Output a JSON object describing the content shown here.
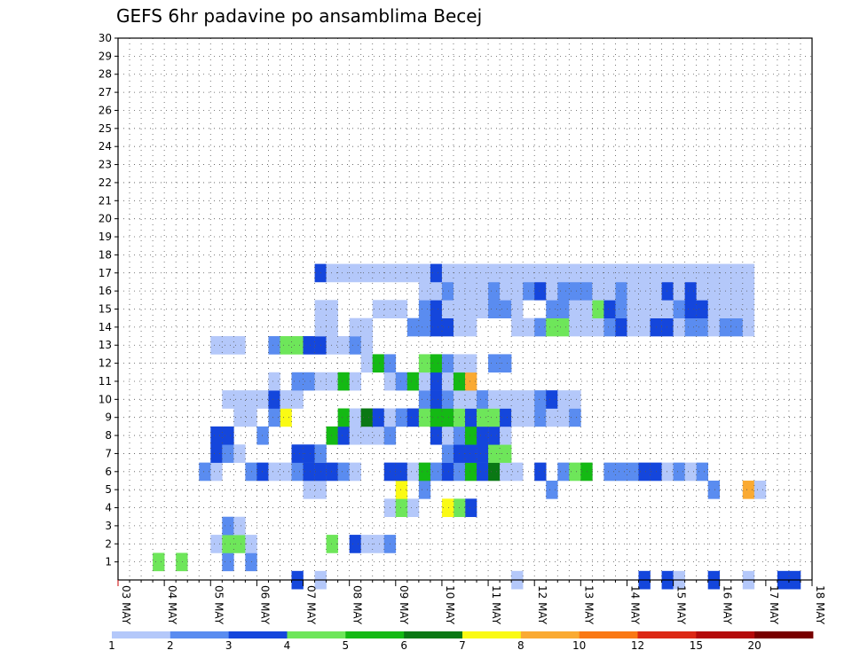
{
  "chart_data": {
    "type": "heatmap",
    "title": "GEFS 6hr padavine po ansamblima Becej",
    "xlabel": "",
    "ylabel": "",
    "x_tick_labels": [
      "03 MAY",
      "04 MAY",
      "05 MAY",
      "06 MAY",
      "07 MAY",
      "08 MAY",
      "09 MAY",
      "10 MAY",
      "11 MAY",
      "12 MAY",
      "13 MAY",
      "14 MAY",
      "15 MAY",
      "16 MAY",
      "17 MAY",
      "18 MAY"
    ],
    "y_tick_labels": [
      "1",
      "2",
      "3",
      "4",
      "5",
      "6",
      "7",
      "8",
      "9",
      "10",
      "11",
      "12",
      "13",
      "14",
      "15",
      "16",
      "17",
      "18",
      "19",
      "20",
      "21",
      "22",
      "23",
      "24",
      "25",
      "26",
      "27",
      "28",
      "29",
      "30"
    ],
    "x_range_steps": [
      0,
      60
    ],
    "y_range_members": [
      0,
      30
    ],
    "time_step_hours": 6,
    "grid": true,
    "colorbar": {
      "placement": "bottom",
      "bounds": [
        "1",
        "2",
        "3",
        "4",
        "5",
        "6",
        "7",
        "8",
        "10",
        "12",
        "15",
        "20"
      ],
      "colors": [
        "#b4c8fa",
        "#5a8cf0",
        "#1446dc",
        "#6ee65a",
        "#14b914",
        "#0a7814",
        "#fafa14",
        "#faaa32",
        "#fa7814",
        "#dc2814",
        "#b40a0a",
        "#780000"
      ]
    },
    "cells": [
      [
        0,
        17,
        1
      ],
      [
        0,
        15,
        3
      ],
      [
        0,
        34,
        1
      ],
      [
        0,
        45,
        3
      ],
      [
        0,
        47,
        3
      ],
      [
        0,
        48,
        1
      ],
      [
        0,
        51,
        3
      ],
      [
        0,
        54,
        1
      ],
      [
        0,
        57,
        3
      ],
      [
        0,
        58,
        3
      ],
      [
        0,
        60,
        3
      ],
      [
        1,
        3,
        4
      ],
      [
        1,
        5,
        4
      ],
      [
        1,
        9,
        2
      ],
      [
        1,
        11,
        2
      ],
      [
        2,
        8,
        1
      ],
      [
        2,
        9,
        4
      ],
      [
        2,
        10,
        4
      ],
      [
        2,
        11,
        1
      ],
      [
        2,
        18,
        4
      ],
      [
        2,
        20,
        3
      ],
      [
        2,
        21,
        1
      ],
      [
        2,
        22,
        1
      ],
      [
        2,
        23,
        2
      ],
      [
        3,
        9,
        2
      ],
      [
        3,
        10,
        1
      ],
      [
        4,
        25,
        1
      ],
      [
        4,
        30,
        3
      ],
      [
        4,
        23,
        1
      ],
      [
        4,
        24,
        4
      ],
      [
        4,
        29,
        4
      ],
      [
        4,
        28,
        7
      ],
      [
        5,
        16,
        1
      ],
      [
        5,
        17,
        1
      ],
      [
        5,
        24,
        7
      ],
      [
        5,
        26,
        2
      ],
      [
        5,
        37,
        2
      ],
      [
        5,
        51,
        2
      ],
      [
        5,
        54,
        8
      ],
      [
        5,
        55,
        1
      ],
      [
        5,
        60,
        3
      ],
      [
        6,
        7,
        2
      ],
      [
        6,
        8,
        1
      ],
      [
        6,
        11,
        2
      ],
      [
        6,
        12,
        3
      ],
      [
        6,
        13,
        1
      ],
      [
        6,
        14,
        1
      ],
      [
        6,
        15,
        2
      ],
      [
        6,
        16,
        3
      ],
      [
        6,
        17,
        3
      ],
      [
        6,
        18,
        3
      ],
      [
        6,
        19,
        2
      ],
      [
        6,
        20,
        1
      ],
      [
        6,
        23,
        3
      ],
      [
        6,
        24,
        3
      ],
      [
        6,
        25,
        1
      ],
      [
        6,
        26,
        5
      ],
      [
        6,
        27,
        2
      ],
      [
        6,
        28,
        3
      ],
      [
        6,
        29,
        2
      ],
      [
        6,
        30,
        5
      ],
      [
        6,
        31,
        3
      ],
      [
        6,
        32,
        6
      ],
      [
        6,
        33,
        1
      ],
      [
        6,
        34,
        1
      ],
      [
        6,
        36,
        3
      ],
      [
        6,
        38,
        2
      ],
      [
        6,
        39,
        4
      ],
      [
        6,
        40,
        5
      ],
      [
        6,
        42,
        2
      ],
      [
        6,
        43,
        2
      ],
      [
        6,
        44,
        2
      ],
      [
        6,
        45,
        3
      ],
      [
        6,
        46,
        3
      ],
      [
        6,
        47,
        1
      ],
      [
        6,
        48,
        2
      ],
      [
        6,
        49,
        1
      ],
      [
        6,
        50,
        2
      ],
      [
        7,
        8,
        3
      ],
      [
        7,
        9,
        2
      ],
      [
        7,
        10,
        1
      ],
      [
        7,
        15,
        3
      ],
      [
        7,
        16,
        3
      ],
      [
        7,
        17,
        2
      ],
      [
        7,
        28,
        2
      ],
      [
        7,
        29,
        3
      ],
      [
        7,
        30,
        3
      ],
      [
        7,
        31,
        3
      ],
      [
        7,
        32,
        4
      ],
      [
        7,
        33,
        4
      ],
      [
        8,
        8,
        3
      ],
      [
        8,
        9,
        3
      ],
      [
        8,
        12,
        2
      ],
      [
        8,
        18,
        5
      ],
      [
        8,
        19,
        3
      ],
      [
        8,
        20,
        1
      ],
      [
        8,
        21,
        1
      ],
      [
        8,
        22,
        1
      ],
      [
        8,
        23,
        2
      ],
      [
        8,
        27,
        3
      ],
      [
        8,
        28,
        1
      ],
      [
        8,
        29,
        2
      ],
      [
        8,
        30,
        5
      ],
      [
        8,
        31,
        3
      ],
      [
        8,
        32,
        3
      ],
      [
        8,
        33,
        1
      ],
      [
        9,
        10,
        1
      ],
      [
        9,
        11,
        1
      ],
      [
        9,
        14,
        7
      ],
      [
        9,
        13,
        2
      ],
      [
        9,
        19,
        5
      ],
      [
        9,
        20,
        1
      ],
      [
        9,
        21,
        6
      ],
      [
        9,
        22,
        3
      ],
      [
        9,
        23,
        1
      ],
      [
        9,
        24,
        2
      ],
      [
        9,
        25,
        3
      ],
      [
        9,
        26,
        4
      ],
      [
        9,
        27,
        5
      ],
      [
        9,
        28,
        5
      ],
      [
        9,
        29,
        4
      ],
      [
        9,
        30,
        3
      ],
      [
        9,
        31,
        4
      ],
      [
        9,
        32,
        4
      ],
      [
        9,
        33,
        3
      ],
      [
        9,
        34,
        1
      ],
      [
        9,
        35,
        1
      ],
      [
        9,
        36,
        2
      ],
      [
        9,
        37,
        1
      ],
      [
        9,
        38,
        1
      ],
      [
        9,
        39,
        2
      ],
      [
        10,
        9,
        1
      ],
      [
        10,
        10,
        1
      ],
      [
        10,
        11,
        1
      ],
      [
        10,
        12,
        1
      ],
      [
        10,
        13,
        3
      ],
      [
        10,
        14,
        1
      ],
      [
        10,
        15,
        1
      ],
      [
        10,
        26,
        2
      ],
      [
        10,
        27,
        3
      ],
      [
        10,
        28,
        2
      ],
      [
        10,
        29,
        1
      ],
      [
        10,
        30,
        1
      ],
      [
        10,
        31,
        2
      ],
      [
        10,
        32,
        1
      ],
      [
        10,
        33,
        1
      ],
      [
        10,
        34,
        1
      ],
      [
        10,
        35,
        1
      ],
      [
        10,
        36,
        2
      ],
      [
        10,
        37,
        3
      ],
      [
        10,
        38,
        1
      ],
      [
        10,
        39,
        1
      ],
      [
        11,
        13,
        1
      ],
      [
        11,
        15,
        2
      ],
      [
        11,
        16,
        2
      ],
      [
        11,
        17,
        1
      ],
      [
        11,
        18,
        1
      ],
      [
        11,
        19,
        5
      ],
      [
        11,
        20,
        1
      ],
      [
        11,
        23,
        1
      ],
      [
        11,
        24,
        2
      ],
      [
        11,
        25,
        5
      ],
      [
        11,
        26,
        1
      ],
      [
        11,
        27,
        3
      ],
      [
        11,
        28,
        1
      ],
      [
        11,
        29,
        5
      ],
      [
        11,
        30,
        8
      ],
      [
        12,
        21,
        1
      ],
      [
        12,
        22,
        5
      ],
      [
        12,
        23,
        2
      ],
      [
        12,
        26,
        4
      ],
      [
        12,
        27,
        5
      ],
      [
        12,
        28,
        2
      ],
      [
        12,
        29,
        1
      ],
      [
        12,
        30,
        1
      ],
      [
        12,
        32,
        2
      ],
      [
        12,
        33,
        2
      ],
      [
        13,
        8,
        1
      ],
      [
        13,
        9,
        1
      ],
      [
        13,
        10,
        1
      ],
      [
        13,
        13,
        2
      ],
      [
        13,
        14,
        4
      ],
      [
        13,
        15,
        4
      ],
      [
        13,
        16,
        3
      ],
      [
        13,
        17,
        3
      ],
      [
        13,
        18,
        1
      ],
      [
        13,
        19,
        1
      ],
      [
        13,
        20,
        2
      ],
      [
        13,
        21,
        1
      ],
      [
        14,
        17,
        1
      ],
      [
        14,
        18,
        1
      ],
      [
        14,
        20,
        1
      ],
      [
        14,
        21,
        1
      ],
      [
        14,
        25,
        2
      ],
      [
        14,
        26,
        2
      ],
      [
        14,
        27,
        3
      ],
      [
        14,
        28,
        3
      ],
      [
        14,
        29,
        1
      ],
      [
        14,
        30,
        1
      ],
      [
        14,
        34,
        1
      ],
      [
        14,
        35,
        1
      ],
      [
        14,
        36,
        2
      ],
      [
        14,
        37,
        4
      ],
      [
        14,
        38,
        4
      ],
      [
        14,
        39,
        1
      ],
      [
        14,
        40,
        1
      ],
      [
        14,
        41,
        1
      ],
      [
        14,
        42,
        2
      ],
      [
        14,
        43,
        3
      ],
      [
        14,
        44,
        1
      ],
      [
        14,
        45,
        1
      ],
      [
        14,
        46,
        3
      ],
      [
        14,
        47,
        3
      ],
      [
        14,
        48,
        1
      ],
      [
        14,
        49,
        2
      ],
      [
        14,
        50,
        2
      ],
      [
        14,
        51,
        1
      ],
      [
        14,
        52,
        2
      ],
      [
        14,
        53,
        2
      ],
      [
        14,
        54,
        1
      ],
      [
        15,
        17,
        1
      ],
      [
        15,
        18,
        1
      ],
      [
        15,
        22,
        1
      ],
      [
        15,
        23,
        1
      ],
      [
        15,
        24,
        1
      ],
      [
        15,
        26,
        2
      ],
      [
        15,
        27,
        3
      ],
      [
        15,
        28,
        1
      ],
      [
        15,
        29,
        1
      ],
      [
        15,
        30,
        1
      ],
      [
        15,
        31,
        1
      ],
      [
        15,
        32,
        2
      ],
      [
        15,
        33,
        2
      ],
      [
        15,
        34,
        1
      ],
      [
        15,
        37,
        2
      ],
      [
        15,
        38,
        2
      ],
      [
        15,
        39,
        1
      ],
      [
        15,
        40,
        1
      ],
      [
        15,
        41,
        4
      ],
      [
        15,
        42,
        3
      ],
      [
        15,
        43,
        2
      ],
      [
        15,
        44,
        1
      ],
      [
        15,
        45,
        1
      ],
      [
        15,
        46,
        1
      ],
      [
        15,
        47,
        1
      ],
      [
        15,
        48,
        2
      ],
      [
        15,
        49,
        3
      ],
      [
        15,
        50,
        3
      ],
      [
        15,
        51,
        1
      ],
      [
        15,
        52,
        1
      ],
      [
        15,
        53,
        1
      ],
      [
        15,
        54,
        1
      ],
      [
        16,
        26,
        1
      ],
      [
        16,
        27,
        1
      ],
      [
        16,
        28,
        2
      ],
      [
        16,
        29,
        1
      ],
      [
        16,
        30,
        1
      ],
      [
        16,
        31,
        1
      ],
      [
        16,
        32,
        2
      ],
      [
        16,
        33,
        1
      ],
      [
        16,
        34,
        1
      ],
      [
        16,
        35,
        2
      ],
      [
        16,
        36,
        3
      ],
      [
        16,
        37,
        1
      ],
      [
        16,
        38,
        2
      ],
      [
        16,
        39,
        2
      ],
      [
        16,
        40,
        2
      ],
      [
        16,
        41,
        1
      ],
      [
        16,
        42,
        1
      ],
      [
        16,
        43,
        2
      ],
      [
        16,
        44,
        1
      ],
      [
        16,
        45,
        1
      ],
      [
        16,
        46,
        1
      ],
      [
        16,
        47,
        3
      ],
      [
        16,
        48,
        1
      ],
      [
        16,
        49,
        3
      ],
      [
        16,
        50,
        1
      ],
      [
        16,
        51,
        1
      ],
      [
        16,
        52,
        1
      ],
      [
        16,
        53,
        1
      ],
      [
        16,
        54,
        1
      ],
      [
        17,
        17,
        3
      ],
      [
        17,
        18,
        1
      ],
      [
        17,
        19,
        1
      ],
      [
        17,
        20,
        1
      ],
      [
        17,
        21,
        1
      ],
      [
        17,
        22,
        1
      ],
      [
        17,
        23,
        1
      ],
      [
        17,
        24,
        1
      ],
      [
        17,
        25,
        1
      ],
      [
        17,
        26,
        1
      ],
      [
        17,
        27,
        3
      ],
      [
        17,
        28,
        1
      ],
      [
        17,
        29,
        1
      ],
      [
        17,
        30,
        1
      ],
      [
        17,
        31,
        1
      ],
      [
        17,
        32,
        1
      ],
      [
        17,
        33,
        1
      ],
      [
        17,
        34,
        1
      ],
      [
        17,
        35,
        1
      ],
      [
        17,
        36,
        1
      ],
      [
        17,
        37,
        1
      ],
      [
        17,
        38,
        1
      ],
      [
        17,
        39,
        1
      ],
      [
        17,
        40,
        1
      ],
      [
        17,
        41,
        1
      ],
      [
        17,
        42,
        1
      ],
      [
        17,
        43,
        1
      ],
      [
        17,
        44,
        1
      ],
      [
        17,
        45,
        1
      ],
      [
        17,
        46,
        1
      ],
      [
        17,
        47,
        1
      ],
      [
        17,
        48,
        1
      ],
      [
        17,
        49,
        1
      ],
      [
        17,
        50,
        1
      ],
      [
        17,
        51,
        1
      ],
      [
        17,
        52,
        1
      ],
      [
        17,
        53,
        1
      ],
      [
        17,
        54,
        1
      ]
    ]
  }
}
